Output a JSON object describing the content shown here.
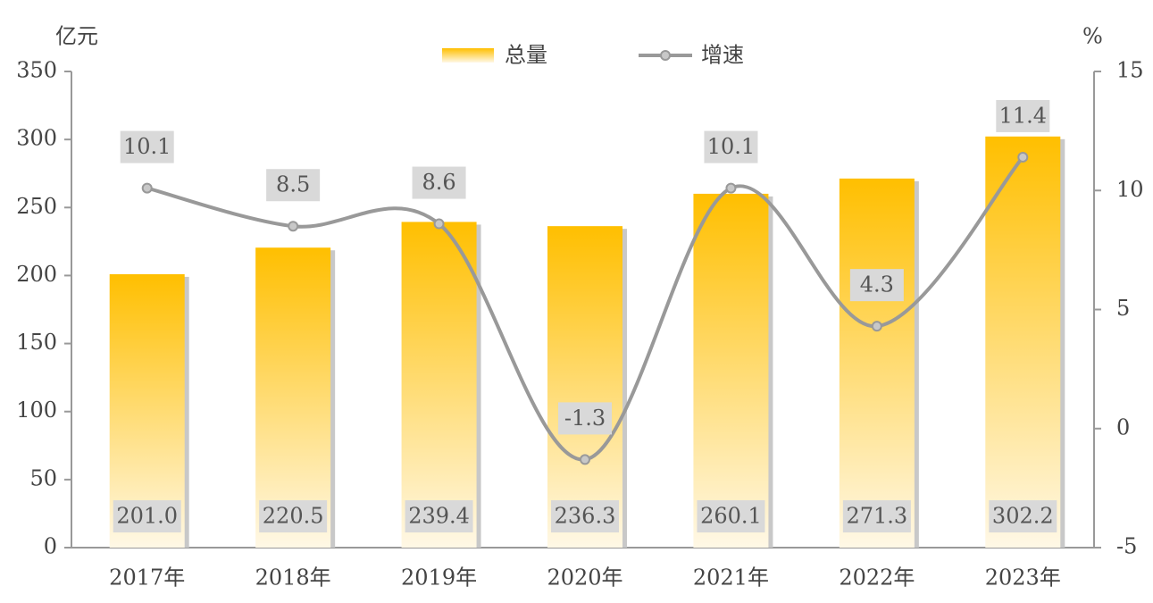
{
  "chart_data": {
    "type": "bar-line",
    "y_label": "亿元",
    "y2_label": "%",
    "categories": [
      "2017年",
      "2018年",
      "2019年",
      "2020年",
      "2021年",
      "2022年",
      "2023年"
    ],
    "series": [
      {
        "name": "总量",
        "type": "bar",
        "color": "#ffbf00",
        "values": [
          201.0,
          220.5,
          239.4,
          236.3,
          260.1,
          271.3,
          302.2
        ],
        "value_labels": [
          "201.0",
          "220.5",
          "239.4",
          "236.3",
          "260.1",
          "271.3",
          "302.2"
        ]
      },
      {
        "name": "增速",
        "type": "line",
        "axis": "y2",
        "color": "#999999",
        "values": [
          10.1,
          8.5,
          8.6,
          -1.3,
          10.1,
          4.3,
          11.4
        ]
      }
    ],
    "ylim": [
      0,
      350
    ],
    "yticks": [
      0,
      50,
      100,
      150,
      200,
      250,
      300,
      350
    ],
    "y2lim": [
      -5,
      15
    ],
    "y2ticks": [
      -5,
      0,
      5,
      10,
      15
    ],
    "legend": "top"
  }
}
